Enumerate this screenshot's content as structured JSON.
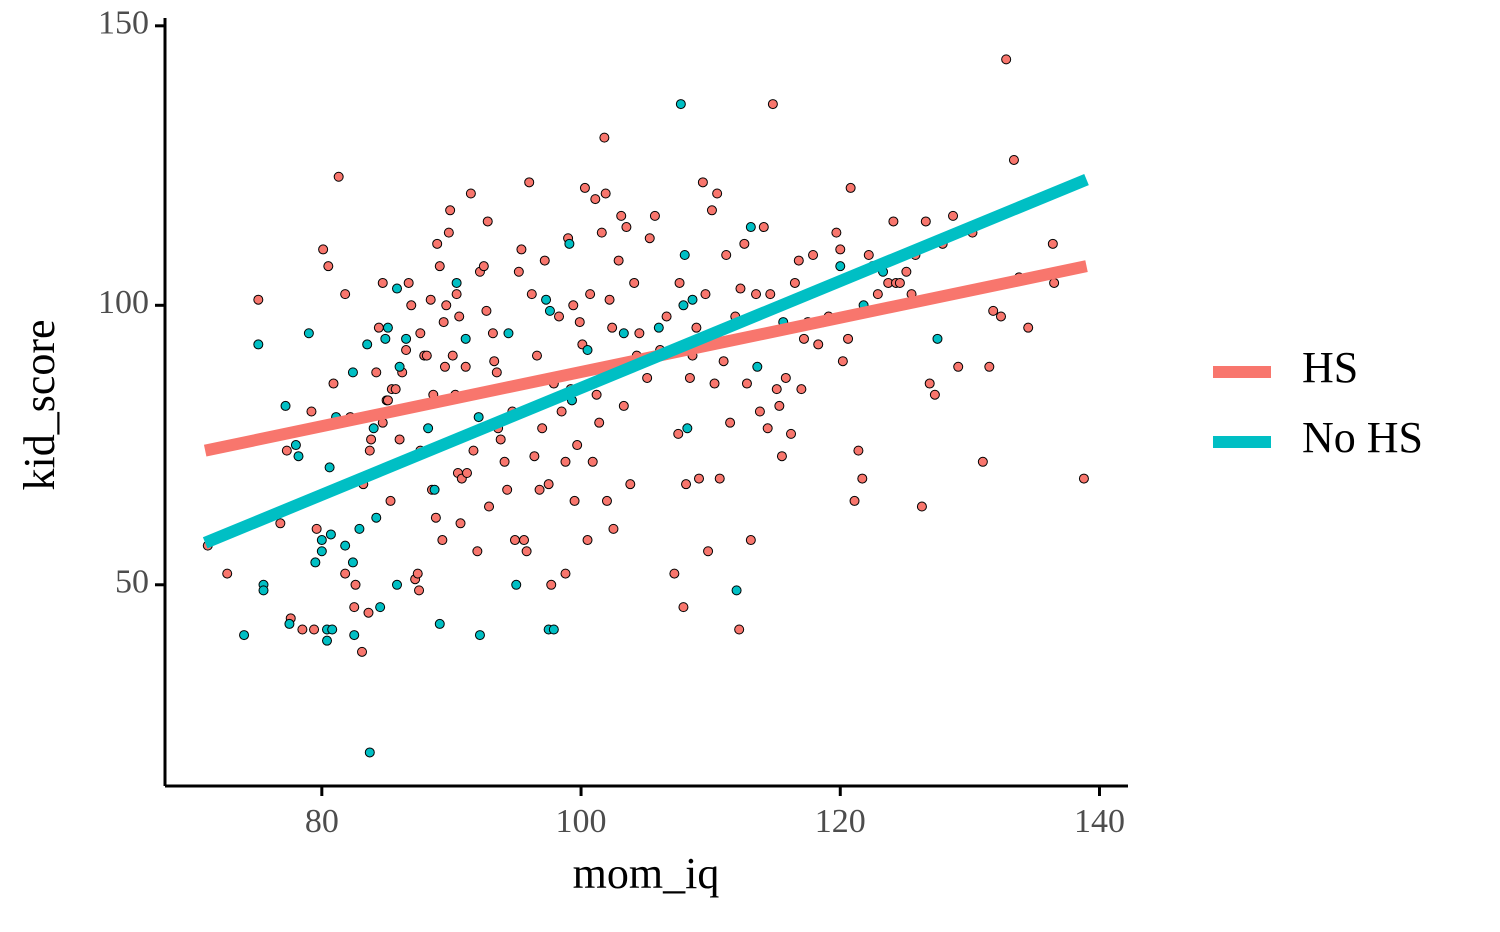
{
  "chart_data": {
    "type": "scatter",
    "x_label": "mom_iq",
    "y_label": "kid_score",
    "xlim": [
      67.9,
      142.2
    ],
    "ylim": [
      14,
      151.4
    ],
    "xticks": [
      80,
      100,
      120,
      140
    ],
    "yticks": [
      50,
      100,
      150
    ],
    "legend": "right",
    "series": [
      {
        "name": "HS",
        "color": "#F8766D",
        "x": [
          71.2,
          72.7,
          75.1,
          76.8,
          77.3,
          77.6,
          78.5,
          79.2,
          79.4,
          79.6,
          80.1,
          80.5,
          80.9,
          81.3,
          81.8,
          81.8,
          82.2,
          82.5,
          82.6,
          83.1,
          83.2,
          83.6,
          83.7,
          83.8,
          84.2,
          84.4,
          84.7,
          84.7,
          85,
          85.1,
          85.4,
          85.3,
          85.7,
          86,
          86.2,
          86.5,
          86.7,
          86.9,
          87.2,
          87.4,
          87.5,
          87.6,
          87.6,
          87.9,
          88.1,
          88.4,
          88.5,
          88.6,
          88.8,
          88.9,
          89.1,
          89.3,
          89.4,
          89.5,
          89.6,
          89.8,
          89.9,
          90.1,
          90.3,
          90.4,
          90.5,
          90.6,
          90.7,
          90.8,
          91.1,
          91.2,
          91.5,
          91.7,
          92,
          92.2,
          92.5,
          92.7,
          92.8,
          92.9,
          93.2,
          93.3,
          93.5,
          93.6,
          93.8,
          94.1,
          94.3,
          94.7,
          94.9,
          95.2,
          95.4,
          95.6,
          95.8,
          96,
          96.2,
          96.4,
          96.6,
          96.8,
          97,
          97.2,
          97.5,
          97.7,
          97.9,
          98.3,
          98.5,
          98.8,
          98.8,
          99,
          99.2,
          99.4,
          99.5,
          99.7,
          99.9,
          100.1,
          100.3,
          100.5,
          100.7,
          100.9,
          101.1,
          101.2,
          101.4,
          101.6,
          101.8,
          101.9,
          102,
          102.2,
          102.4,
          102.5,
          102.7,
          102.9,
          103.1,
          103.3,
          103.5,
          103.8,
          104.1,
          104.3,
          104.5,
          105.1,
          105.3,
          105.7,
          106.1,
          106.6,
          107.2,
          107.5,
          107.6,
          107.9,
          108.1,
          108.4,
          108.6,
          108.9,
          109.1,
          109.4,
          109.6,
          109.8,
          110.1,
          110.3,
          110.5,
          110.7,
          111,
          111.2,
          111.5,
          111.9,
          112.2,
          112.3,
          112.6,
          112.8,
          113.1,
          113.5,
          113.8,
          114.1,
          114.4,
          114.6,
          114.8,
          115.1,
          115.3,
          115.5,
          115.8,
          116.2,
          116.5,
          116.8,
          117,
          117.2,
          117.5,
          117.9,
          118.3,
          118.7,
          119.1,
          119.7,
          120,
          120.2,
          120.6,
          120.8,
          121.1,
          121.4,
          121.7,
          122.2,
          122.5,
          122.9,
          123.7,
          124.1,
          124.3,
          124.6,
          125.1,
          125.5,
          125.8,
          126.3,
          126.6,
          126.9,
          127.3,
          127.9,
          128.7,
          129.1,
          130.2,
          131,
          131.5,
          131.8,
          132.4,
          132.8,
          133.4,
          133.8,
          134.5,
          136.4,
          136.5,
          138.8
        ],
        "values": [
          57,
          52,
          101,
          61,
          74,
          44,
          42,
          81,
          42,
          60,
          110,
          107,
          86,
          123,
          102,
          52,
          80,
          46,
          50,
          38,
          68,
          45,
          74,
          76,
          88,
          96,
          104,
          79,
          83,
          83,
          85,
          65,
          85,
          76,
          88,
          92,
          104,
          100,
          51,
          52,
          49,
          95,
          74,
          91,
          91,
          101,
          67,
          84,
          62,
          111,
          107,
          58,
          97,
          89,
          100,
          113,
          117,
          91,
          84,
          102,
          70,
          98,
          61,
          69,
          89,
          70,
          120,
          74,
          56,
          106,
          107,
          99,
          115,
          64,
          95,
          90,
          88,
          78,
          76,
          72,
          67,
          81,
          58,
          106,
          110,
          58,
          56,
          122,
          102,
          73,
          91,
          67,
          78,
          108,
          68,
          50,
          86,
          98,
          81,
          72,
          52,
          112,
          85,
          100,
          65,
          75,
          97,
          93,
          121,
          58,
          102,
          72,
          119,
          84,
          79,
          113,
          130,
          120,
          65,
          101,
          96,
          60,
          89,
          108,
          116,
          82,
          114,
          68,
          104,
          91,
          95,
          87,
          112,
          116,
          92,
          98,
          52,
          77,
          104,
          46,
          68,
          87,
          91,
          96,
          69,
          122,
          102,
          56,
          117,
          86,
          120,
          69,
          90,
          109,
          79,
          98,
          42,
          103,
          111,
          86,
          58,
          102,
          81,
          114,
          78,
          102,
          136,
          85,
          82,
          73,
          87,
          77,
          104,
          108,
          85,
          94,
          97,
          109,
          93,
          97,
          98,
          113,
          110,
          90,
          94,
          121,
          65,
          74,
          69,
          109,
          107,
          102,
          104,
          115,
          104,
          104,
          106,
          102,
          109,
          64,
          115,
          86,
          84,
          111,
          116,
          89,
          113,
          72,
          89,
          99,
          98,
          144,
          126,
          105,
          96,
          111,
          104,
          69
        ],
        "fit": {
          "x": [
            71,
            139
          ],
          "values": [
            74,
            107
          ]
        }
      },
      {
        "name": "No HS",
        "color": "#00BFC4",
        "x": [
          75.1,
          74,
          75.5,
          75.5,
          77.2,
          77.5,
          78,
          78.2,
          79,
          79.5,
          80,
          80,
          80.6,
          80.4,
          80.7,
          80.8,
          80.4,
          81.1,
          81.8,
          82.4,
          82.4,
          82.5,
          82.9,
          83.5,
          83.7,
          84,
          84.2,
          84.5,
          84.9,
          85.1,
          85.8,
          85.8,
          86,
          86.5,
          88.2,
          88.7,
          89.1,
          90.4,
          91.1,
          92.1,
          92.2,
          94.4,
          95,
          97.3,
          97.5,
          97.9,
          97.6,
          99.1,
          99.3,
          100.5,
          103.3,
          106,
          107.7,
          107.9,
          108,
          108.2,
          108.6,
          112,
          113.1,
          113.6,
          115.6,
          120,
          121.8,
          123.3,
          127.5
        ],
        "values": [
          93,
          41,
          50,
          49,
          82,
          43,
          75,
          73,
          95,
          54,
          56,
          58,
          71,
          42,
          59,
          42,
          40,
          80,
          57,
          88,
          54,
          41,
          60,
          93,
          20,
          78,
          62,
          46,
          94,
          96,
          103,
          50,
          89,
          94,
          78,
          67,
          43,
          104,
          94,
          80,
          41,
          95,
          50,
          101,
          42,
          42,
          99,
          111,
          83,
          92,
          95,
          96,
          136,
          100,
          109,
          78,
          101,
          49,
          114,
          89,
          97,
          107,
          100,
          106,
          94
        ],
        "fit": {
          "x": [
            71,
            139
          ],
          "values": [
            57.5,
            122.5
          ]
        }
      }
    ]
  }
}
